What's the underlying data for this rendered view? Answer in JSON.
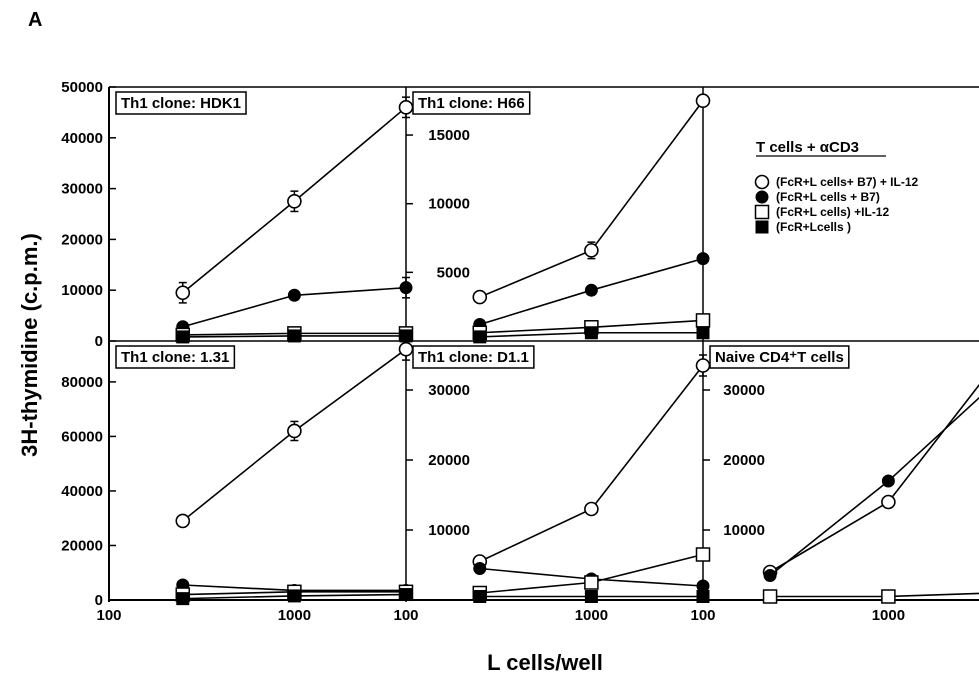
{
  "figure_label": "A",
  "chart_data": {
    "type": "scatter",
    "xlabel": "L cells/well",
    "ylabel": "3H-thymidine (c.p.m.)",
    "x_scale": "log",
    "xlim": [
      100,
      4000
    ],
    "x_ticks": [
      "100",
      "1000"
    ],
    "legend": {
      "title": "T cells + αCD3",
      "placement": "top-right panel",
      "entries": [
        {
          "label": "(FcR+L cells+ B7) + IL-12",
          "marker": "open-circle"
        },
        {
          "label": "(FcR+L cells + B7)",
          "marker": "filled-circle"
        },
        {
          "label": "(FcR+L cells) +IL-12",
          "marker": "open-square"
        },
        {
          "label": "(FcR+Lcells )",
          "marker": "filled-square"
        }
      ]
    },
    "panels": [
      {
        "title": "Th1 clone: HDK1",
        "ylim": [
          0,
          50000
        ],
        "y_ticks": [
          "0",
          "10000",
          "20000",
          "30000",
          "40000",
          "50000"
        ],
        "x": [
          250,
          1000,
          4000
        ],
        "series": [
          {
            "marker": "open-circle",
            "values": [
              9500,
              27500,
              46000
            ],
            "errors": [
              2000,
              2000,
              2000
            ]
          },
          {
            "marker": "filled-circle",
            "values": [
              2800,
              9000,
              10500
            ],
            "errors": [
              0,
              0,
              2000
            ]
          },
          {
            "marker": "open-square",
            "values": [
              1200,
              1500,
              1500
            ],
            "errors": [
              0,
              0,
              0
            ]
          },
          {
            "marker": "filled-square",
            "values": [
              800,
              1000,
              1000
            ],
            "errors": [
              0,
              0,
              0
            ]
          }
        ]
      },
      {
        "title": "Th1 clone: H66",
        "ylim": [
          0,
          18500
        ],
        "y_ticks": [
          "5000",
          "10000",
          "15000"
        ],
        "x": [
          250,
          1000,
          4000
        ],
        "series": [
          {
            "marker": "open-circle",
            "values": [
              3200,
              6600,
              17500
            ],
            "errors": [
              0,
              600,
              0
            ]
          },
          {
            "marker": "filled-circle",
            "values": [
              1200,
              3700,
              6000
            ],
            "errors": [
              0,
              0,
              0
            ]
          },
          {
            "marker": "open-square",
            "values": [
              600,
              1000,
              1500
            ],
            "errors": [
              0,
              0,
              0
            ]
          },
          {
            "marker": "filled-square",
            "values": [
              300,
              600,
              600
            ],
            "errors": [
              0,
              0,
              0
            ]
          }
        ]
      },
      {
        "title": "Th1 clone: 1.31",
        "ylim": [
          0,
          95000
        ],
        "y_ticks": [
          "0",
          "20000",
          "40000",
          "60000",
          "80000"
        ],
        "x": [
          250,
          1000,
          4000
        ],
        "series": [
          {
            "marker": "open-circle",
            "values": [
              29000,
              62000,
              92000
            ],
            "errors": [
              0,
              3500,
              4000
            ]
          },
          {
            "marker": "filled-circle",
            "values": [
              5500,
              3500,
              3500
            ],
            "errors": [
              0,
              0,
              0
            ]
          },
          {
            "marker": "open-square",
            "values": [
              2000,
              3000,
              3000
            ],
            "errors": [
              0,
              0,
              0
            ]
          },
          {
            "marker": "filled-square",
            "values": [
              500,
              1500,
              2000
            ],
            "errors": [
              0,
              0,
              0
            ]
          }
        ]
      },
      {
        "title": "Th1 clone: D1.1",
        "ylim": [
          0,
          37000
        ],
        "y_ticks": [
          "10000",
          "20000",
          "30000"
        ],
        "x": [
          250,
          1000,
          4000
        ],
        "series": [
          {
            "marker": "open-circle",
            "values": [
              5500,
              13000,
              33500
            ],
            "errors": [
              0,
              0,
              1500
            ]
          },
          {
            "marker": "filled-circle",
            "values": [
              4500,
              3000,
              2000
            ],
            "errors": [
              0,
              0,
              0
            ]
          },
          {
            "marker": "open-square",
            "values": [
              1000,
              2500,
              6500
            ],
            "errors": [
              0,
              0,
              0
            ]
          },
          {
            "marker": "filled-square",
            "values": [
              500,
              500,
              500
            ],
            "errors": [
              0,
              0,
              0
            ]
          }
        ]
      },
      {
        "title": "Naive CD4⁺T cells",
        "ylim": [
          0,
          37000
        ],
        "y_ticks": [
          "10000",
          "20000",
          "30000"
        ],
        "x": [
          230,
          1000,
          3600
        ],
        "series": [
          {
            "marker": "open-circle",
            "values": [
              4000,
              14000,
              33000
            ],
            "errors": [
              0,
              0,
              1500
            ]
          },
          {
            "marker": "filled-circle",
            "values": [
              3500,
              17000,
              30500
            ],
            "errors": [
              0,
              0,
              0
            ]
          },
          {
            "marker": "open-square",
            "values": [
              500,
              500,
              1000
            ],
            "errors": [
              0,
              0,
              0
            ]
          }
        ]
      }
    ]
  }
}
